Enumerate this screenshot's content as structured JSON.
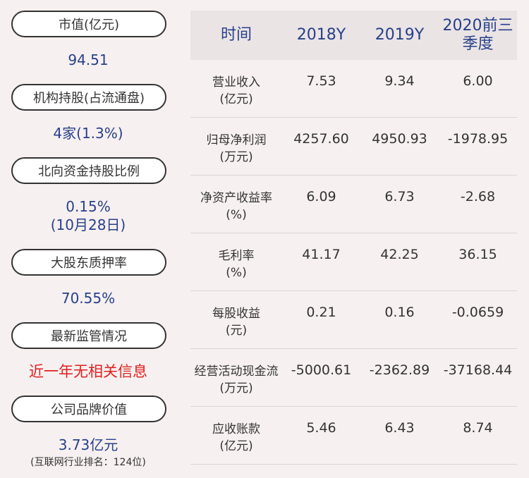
{
  "left": {
    "items": [
      {
        "label": "市值(亿元)",
        "value": "94.51"
      },
      {
        "label": "机构持股(占流通盘)",
        "value": "4家(1.3%)"
      },
      {
        "label": "北向资金持股比例",
        "value": "0.15%",
        "value2": "(10月28日)"
      },
      {
        "label": "大股东质押率",
        "value": "70.55%"
      },
      {
        "label": "最新监管情况",
        "value": "近一年无相关信息"
      },
      {
        "label": "公司品牌价值",
        "value": "3.73亿元",
        "note": "(互联网行业排名：124位)"
      }
    ]
  },
  "table": {
    "headers": [
      "时间",
      "2018Y",
      "2019Y",
      "2020前三季度"
    ],
    "rows": [
      {
        "label": "营业收入",
        "unit": "(亿元)",
        "values": [
          "7.53",
          "9.34",
          "6.00"
        ]
      },
      {
        "label": "归母净利润",
        "unit": "(万元)",
        "values": [
          "4257.60",
          "4950.93",
          "-1978.95"
        ]
      },
      {
        "label": "净资产收益率",
        "unit": "(%)",
        "values": [
          "6.09",
          "6.73",
          "-2.68"
        ]
      },
      {
        "label": "毛利率",
        "unit": "(%)",
        "values": [
          "41.17",
          "42.25",
          "36.15"
        ]
      },
      {
        "label": "每股收益",
        "unit": "(元)",
        "values": [
          "0.21",
          "0.16",
          "-0.0659"
        ]
      },
      {
        "label": "经营活动现金流",
        "unit": "(万元)",
        "values": [
          "-5000.61",
          "-2362.89",
          "-37168.44"
        ]
      },
      {
        "label": "应收账款",
        "unit": "(亿元)",
        "values": [
          "5.46",
          "6.43",
          "8.74"
        ]
      }
    ]
  }
}
